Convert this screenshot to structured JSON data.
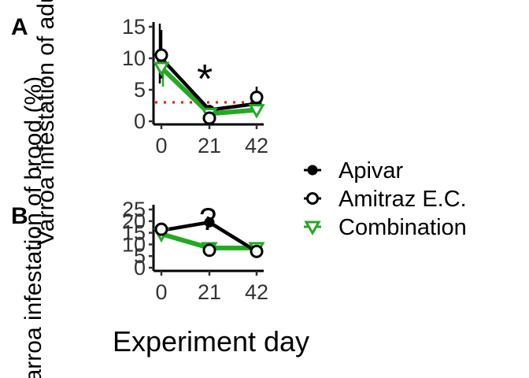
{
  "chart_data": [
    {
      "type": "line",
      "panel_label": "A",
      "ylabel": "Varroa infestation of adult bees (%)",
      "x": [
        0,
        21,
        42
      ],
      "x_ticks": [
        "0",
        "21",
        "42"
      ],
      "y_ticks": [
        "0",
        "5",
        "10",
        "15"
      ],
      "ylim": [
        0,
        15
      ],
      "annotations": [
        "*"
      ],
      "reference_line": {
        "y": 3,
        "color": "#ff0000",
        "style": "dotted"
      },
      "series": [
        {
          "name": "Apivar",
          "values": [
            10,
            1.8,
            2.8
          ],
          "err_low": [
            6,
            1.1,
            1.8
          ],
          "err_high": [
            15.5,
            2.5,
            4.5
          ],
          "marker": "filled-circle",
          "color": "#000000"
        },
        {
          "name": "Amitraz E.C.",
          "values": [
            10.5,
            0.5,
            3.8
          ],
          "err_low": [
            6.8,
            0.1,
            2.5
          ],
          "err_high": [
            14.5,
            0.9,
            5.5
          ],
          "marker": "open-circle",
          "color": "#000000"
        },
        {
          "name": "Combination",
          "values": [
            8.5,
            1.2,
            1.8
          ],
          "err_low": [
            5.5,
            0.7,
            1.1
          ],
          "err_high": [
            11.5,
            1.7,
            2.5
          ],
          "marker": "open-triangle-down",
          "color": "#22aa22"
        }
      ]
    },
    {
      "type": "line",
      "panel_label": "B",
      "ylabel": "Varroa infestation of brood (%)",
      "x": [
        0,
        21,
        42
      ],
      "x_ticks": [
        "0",
        "21",
        "42"
      ],
      "y_ticks": [
        "0",
        "5",
        "10",
        "15",
        "20",
        "25"
      ],
      "ylim": [
        0,
        25
      ],
      "annotations": [
        "?"
      ],
      "series": [
        {
          "name": "Apivar",
          "values": [
            16,
            19.5,
            7
          ],
          "err_low": [
            13,
            17,
            5.5
          ],
          "err_high": [
            19,
            22,
            8.5
          ],
          "marker": "filled-circle",
          "color": "#000000"
        },
        {
          "name": "Amitraz E.C.",
          "values": [
            16.5,
            7.5,
            7
          ],
          "err_low": [
            14,
            5.5,
            5.5
          ],
          "err_high": [
            19,
            9.5,
            8.5
          ],
          "marker": "open-circle",
          "color": "#000000"
        },
        {
          "name": "Combination",
          "values": [
            14.5,
            8.5,
            8.5
          ],
          "err_low": [
            12.5,
            7,
            7
          ],
          "err_high": [
            16.5,
            10,
            10
          ],
          "marker": "open-triangle-down",
          "color": "#22aa22"
        }
      ]
    }
  ],
  "shared": {
    "xlabel": "Experiment day",
    "legend": [
      "Apivar",
      "Amitraz E.C.",
      "Combination"
    ],
    "legend_position": "right"
  }
}
